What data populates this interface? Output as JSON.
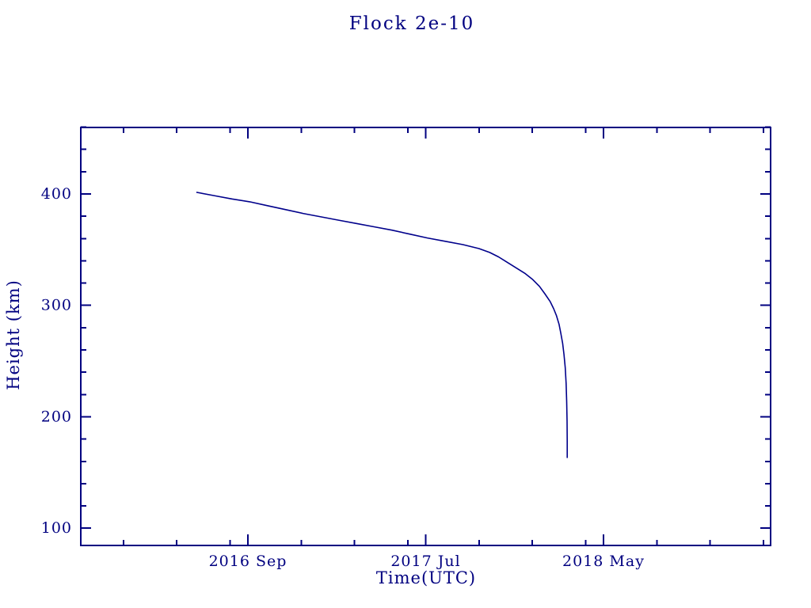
{
  "colors": {
    "accent": "#000080",
    "line": "#00008B",
    "background": "#ffffff"
  },
  "chart_data": {
    "type": "line",
    "title": "Flock 2e-10",
    "xlabel": "Time(UTC)",
    "ylabel": "Height (km)",
    "x_unit": "months relative to 2016 Sep",
    "xlim": [
      -9.4,
      29.4
    ],
    "ylim": [
      84.5,
      459.7
    ],
    "grid": false,
    "legend": "none",
    "x_major_ticks": [
      {
        "pos": 0,
        "label": "2016 Sep"
      },
      {
        "pos": 10,
        "label": "2017 Jul"
      },
      {
        "pos": 20,
        "label": "2018 May"
      }
    ],
    "x_minor_ticks": [
      -7,
      -4,
      -1,
      3,
      6,
      9,
      13,
      16,
      19,
      23,
      26,
      29
    ],
    "y_major_ticks": [
      {
        "pos": 100,
        "label": "100"
      },
      {
        "pos": 200,
        "label": "200"
      },
      {
        "pos": 300,
        "label": "300"
      },
      {
        "pos": 400,
        "label": "400"
      }
    ],
    "y_minor_ticks": [
      120,
      140,
      160,
      180,
      220,
      240,
      260,
      280,
      320,
      340,
      360,
      380,
      420,
      440,
      460
    ],
    "series": [
      {
        "name": "Flock 2e-10 height",
        "x": [
          -2.9,
          -1.9,
          -0.9,
          0.1,
          1.1,
          2.1,
          3.1,
          4.1,
          5.1,
          6.1,
          7.1,
          8.1,
          9.1,
          10.1,
          11.1,
          12.1,
          13.0,
          13.6,
          14.1,
          14.6,
          15.1,
          15.6,
          16.0,
          16.4,
          16.7,
          17.0,
          17.2,
          17.35,
          17.5,
          17.6,
          17.7,
          17.78,
          17.85,
          17.9,
          17.93,
          17.95,
          17.96,
          17.96
        ],
        "y": [
          401.5,
          398.5,
          395.5,
          393,
          389.5,
          386,
          382.5,
          379.5,
          376.5,
          373.5,
          370.5,
          367.5,
          364,
          360.5,
          357.5,
          354.5,
          351,
          347.5,
          343.5,
          338.5,
          333.5,
          328.5,
          323.5,
          317,
          310.5,
          303.5,
          297,
          291,
          283,
          275,
          266,
          256,
          244,
          230,
          214,
          196,
          178,
          163
        ]
      }
    ]
  }
}
